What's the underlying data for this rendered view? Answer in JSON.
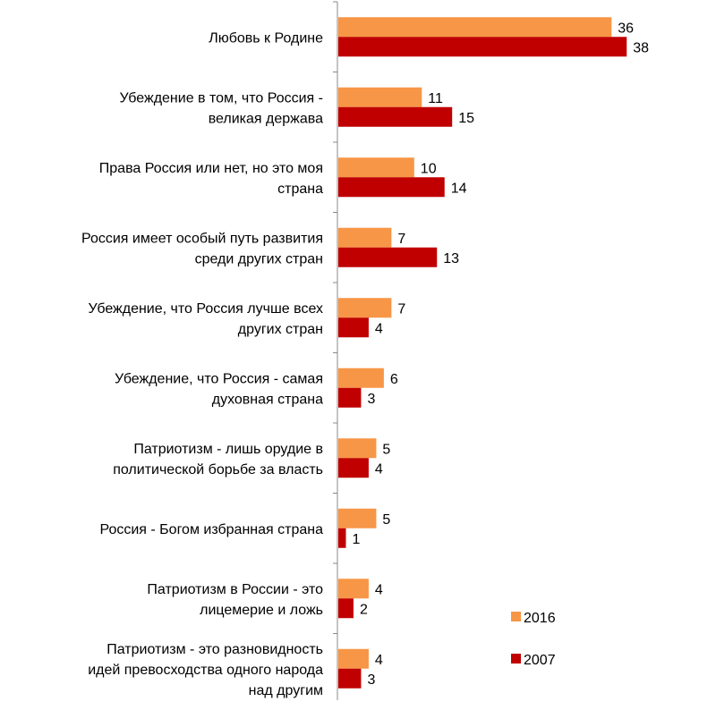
{
  "chart_data": {
    "type": "bar",
    "orientation": "horizontal",
    "title": "",
    "xlabel": "",
    "ylabel": "",
    "xlim": [
      0,
      40
    ],
    "grid": false,
    "legend_position": "bottom-right",
    "categories": [
      [
        "Любовь к Родине"
      ],
      [
        "Убеждение в том, что Россия -",
        "великая держава"
      ],
      [
        "Права Россия или нет, но это моя",
        "страна"
      ],
      [
        "Россия имеет особый путь развития",
        "среди других стран"
      ],
      [
        "Убеждение, что Россия лучше всех",
        "других стран"
      ],
      [
        "Убеждение, что Россия - самая",
        "духовная страна"
      ],
      [
        "Патриотизм - лишь орудие в",
        "политической борьбе за власть"
      ],
      [
        "Россия - Богом избранная страна"
      ],
      [
        "Патриотизм в России - это",
        "лицемерие и ложь"
      ],
      [
        "Патриотизм - это разновидность",
        "идей превосходства одного народа",
        "над другим"
      ]
    ],
    "series": [
      {
        "name": "2016",
        "color": "#f79646",
        "values": [
          36,
          11,
          10,
          7,
          7,
          6,
          5,
          5,
          4,
          4
        ]
      },
      {
        "name": "2007",
        "color": "#c00000",
        "values": [
          38,
          15,
          14,
          13,
          4,
          3,
          4,
          1,
          2,
          3
        ]
      }
    ]
  }
}
